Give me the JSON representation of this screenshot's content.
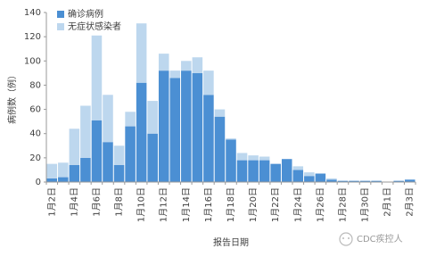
{
  "chart_data": {
    "type": "stacked-bar",
    "y_label": "病例数（例）",
    "x_label": "报告日期",
    "categories": [
      "1月2日",
      null,
      "1月4日",
      null,
      "1月6日",
      null,
      "1月8日",
      null,
      "1月10日",
      null,
      "1月12日",
      null,
      "1月14日",
      null,
      "1月16日",
      null,
      "1月18日",
      null,
      "1月20日",
      null,
      "1月22日",
      null,
      "1月24日",
      null,
      "1月26日",
      null,
      "1月28日",
      null,
      "1月30日",
      null,
      "2月1日",
      null,
      "2月3日"
    ],
    "series": [
      {
        "name": "确诊病例",
        "color": "#4b8fd3",
        "values": [
          3,
          4,
          14,
          20,
          51,
          33,
          14,
          46,
          82,
          40,
          92,
          86,
          92,
          90,
          72,
          54,
          35,
          18,
          18,
          18,
          15,
          19,
          10,
          5,
          7,
          2,
          1,
          1,
          1,
          1,
          0,
          1,
          2
        ]
      },
      {
        "name": "无症状感染者",
        "color": "#bdd7ee",
        "values": [
          12,
          12,
          30,
          43,
          70,
          39,
          16,
          12,
          49,
          27,
          14,
          6,
          8,
          13,
          20,
          6,
          1,
          6,
          4,
          3,
          0,
          0,
          3,
          3,
          0,
          1,
          0,
          0,
          0,
          0,
          0,
          0,
          0
        ]
      }
    ],
    "ylim": [
      0,
      140
    ],
    "yticks": [
      0,
      20,
      40,
      60,
      80,
      100,
      120,
      140
    ],
    "legend": "top-left",
    "watermark": "CDC疾控人"
  }
}
